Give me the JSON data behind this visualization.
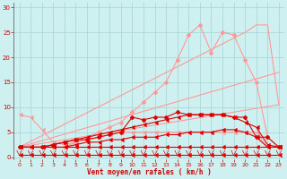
{
  "background_color": "#cff0f0",
  "grid_color": "#aad8d8",
  "xlabel": "Vent moyen/en rafales ( km/h )",
  "xlabel_color": "#cc0000",
  "tick_color": "#cc0000",
  "ylim": [
    -0.5,
    31
  ],
  "xlim": [
    -0.5,
    23.5
  ],
  "yticks": [
    0,
    5,
    10,
    15,
    20,
    25,
    30
  ],
  "xticks": [
    0,
    1,
    2,
    3,
    4,
    5,
    6,
    7,
    8,
    9,
    10,
    11,
    12,
    13,
    14,
    15,
    16,
    17,
    18,
    19,
    20,
    21,
    22,
    23
  ],
  "lines": [
    {
      "x": [
        0,
        1,
        2,
        3,
        4,
        5,
        6,
        7,
        8,
        9,
        10,
        11,
        12,
        13,
        14,
        15,
        16,
        17,
        18,
        19,
        20,
        21,
        22,
        23
      ],
      "y": [
        2,
        2,
        2,
        2,
        2,
        2,
        2,
        2,
        2,
        2,
        2,
        2,
        2,
        2,
        2,
        2,
        2,
        2,
        2,
        2,
        2,
        2,
        2,
        2
      ],
      "color": "#dd0000",
      "lw": 0.8,
      "marker": 4,
      "ms": 2.5,
      "alpha": 1.0,
      "zorder": 3
    },
    {
      "x": [
        0,
        1,
        2,
        3,
        4,
        5,
        6,
        7,
        8,
        9,
        10,
        11,
        12,
        13,
        14,
        15,
        16,
        17,
        18,
        19,
        20,
        21,
        22,
        23
      ],
      "y": [
        0.5,
        0.5,
        0.5,
        0.5,
        0.5,
        0.5,
        0.5,
        0.5,
        0.5,
        0.5,
        0.5,
        0.5,
        0.5,
        0.5,
        0.5,
        0.5,
        0.5,
        0.5,
        0.5,
        0.5,
        0.5,
        0.5,
        0.5,
        0.5
      ],
      "color": "#dd0000",
      "lw": 0.8,
      "marker": 4,
      "ms": 2.5,
      "alpha": 1.0,
      "zorder": 3
    },
    {
      "x": [
        0,
        1,
        2,
        3,
        4,
        5,
        6,
        7,
        8,
        9,
        10,
        11,
        12,
        13,
        14,
        15,
        16,
        17,
        18,
        19,
        20,
        21,
        22,
        23
      ],
      "y": [
        2,
        2,
        2,
        2,
        2,
        2.5,
        3,
        3,
        3.5,
        3.5,
        4,
        4,
        4,
        4.5,
        4.5,
        5,
        5,
        5,
        5.5,
        5.5,
        5,
        4,
        2,
        2
      ],
      "color": "#dd0000",
      "lw": 0.8,
      "marker": 4,
      "ms": 2.5,
      "alpha": 1.0,
      "zorder": 3
    },
    {
      "x": [
        0,
        1,
        2,
        3,
        4,
        5,
        6,
        7,
        8,
        9,
        10,
        11,
        12,
        13,
        14,
        15,
        16,
        17,
        18,
        19,
        20,
        21,
        22,
        23
      ],
      "y": [
        2,
        2,
        2,
        2.5,
        3,
        3.5,
        4,
        4.5,
        5,
        5.5,
        6,
        6.5,
        7,
        7.5,
        8,
        8.5,
        8.5,
        8.5,
        8.5,
        8,
        7,
        6,
        2.5,
        2
      ],
      "color": "#dd0000",
      "lw": 0.8,
      "marker": 4,
      "ms": 2.5,
      "alpha": 1.0,
      "zorder": 3
    },
    {
      "x": [
        0,
        2,
        3,
        4,
        5,
        6,
        7,
        8,
        9,
        10,
        11,
        12,
        13,
        14,
        15,
        16,
        17,
        18,
        19,
        20,
        21,
        22,
        23
      ],
      "y": [
        2,
        2,
        2.5,
        3,
        3.5,
        3.5,
        4,
        4.5,
        5,
        8,
        7.5,
        8,
        8,
        9,
        8.5,
        8.5,
        8.5,
        8.5,
        8,
        8,
        4,
        4,
        2
      ],
      "color": "#dd0000",
      "lw": 0.8,
      "marker": "D",
      "ms": 2,
      "alpha": 1.0,
      "zorder": 3
    },
    {
      "x": [
        0,
        1,
        2,
        3,
        4,
        5,
        6,
        7,
        8,
        9,
        10,
        11,
        12,
        13,
        14,
        15,
        16,
        17,
        18,
        19,
        20,
        21,
        22,
        23
      ],
      "y": [
        8.5,
        8,
        5.5,
        3,
        2.5,
        3,
        3.5,
        4,
        4.5,
        5,
        5,
        5,
        5,
        5,
        5,
        5,
        5,
        5,
        5,
        5,
        5,
        5,
        2,
        2
      ],
      "color": "#ff9999",
      "lw": 0.8,
      "marker": 4,
      "ms": 2.5,
      "alpha": 1.0,
      "zorder": 2
    },
    {
      "x": [
        0,
        23
      ],
      "y": [
        2,
        10.5
      ],
      "color": "#ff9999",
      "lw": 0.8,
      "marker": null,
      "ms": 0,
      "alpha": 1.0,
      "zorder": 2
    },
    {
      "x": [
        0,
        23
      ],
      "y": [
        2,
        17
      ],
      "color": "#ff9999",
      "lw": 0.8,
      "marker": null,
      "ms": 0,
      "alpha": 1.0,
      "zorder": 2
    },
    {
      "x": [
        0,
        1,
        2,
        3,
        4,
        5,
        6,
        7,
        8,
        9,
        10,
        11,
        12,
        13,
        14,
        15,
        16,
        17,
        18,
        19,
        20,
        21,
        22,
        23
      ],
      "y": [
        2,
        2,
        2,
        2,
        2,
        3,
        4,
        5,
        6,
        7,
        9,
        11,
        13,
        15,
        19.5,
        24.5,
        26.5,
        21,
        25,
        24.5,
        19.5,
        15,
        4,
        2
      ],
      "color": "#ff9999",
      "lw": 0.8,
      "marker": "D",
      "ms": 2,
      "alpha": 1.0,
      "zorder": 2
    },
    {
      "x": [
        0,
        20,
        21,
        22,
        23
      ],
      "y": [
        2,
        25,
        26.5,
        26.5,
        10.5
      ],
      "color": "#ff9999",
      "lw": 0.8,
      "marker": null,
      "ms": 0,
      "alpha": 1.0,
      "zorder": 2
    }
  ],
  "wind_arrows": [
    0,
    1,
    2,
    3,
    4,
    5,
    6,
    7,
    8,
    9,
    10,
    11,
    12,
    13,
    14,
    15,
    16,
    17,
    18,
    19,
    20,
    21,
    22,
    23
  ],
  "arrow_color": "#dd0000"
}
